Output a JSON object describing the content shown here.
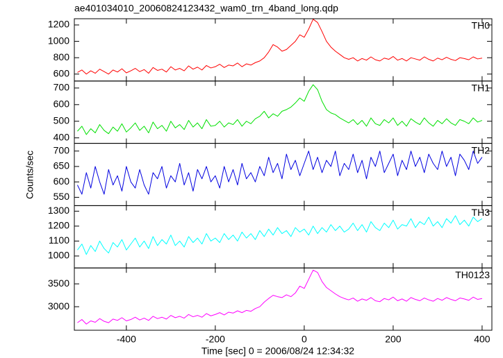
{
  "chart_data": {
    "type": "line",
    "title": "ae401034010_20060824123432_wam0_trn_4band_long.qdp",
    "xlabel": "Time [sec] 0 = 2006/08/24 12:34:32",
    "ylabel": "Counts/sec",
    "xlim": [
      -517,
      422
    ],
    "xticks": [
      -400,
      -200,
      0,
      200,
      400
    ],
    "x": [
      -510,
      -500,
      -490,
      -480,
      -470,
      -460,
      -450,
      -440,
      -430,
      -420,
      -410,
      -400,
      -390,
      -380,
      -370,
      -360,
      -350,
      -340,
      -330,
      -320,
      -310,
      -300,
      -290,
      -280,
      -270,
      -260,
      -250,
      -240,
      -230,
      -220,
      -210,
      -200,
      -190,
      -180,
      -170,
      -160,
      -150,
      -140,
      -130,
      -120,
      -110,
      -100,
      -90,
      -80,
      -70,
      -60,
      -50,
      -40,
      -30,
      -20,
      -10,
      0,
      10,
      20,
      30,
      40,
      50,
      60,
      70,
      80,
      90,
      100,
      110,
      120,
      130,
      140,
      150,
      160,
      170,
      180,
      190,
      200,
      210,
      220,
      230,
      240,
      250,
      260,
      270,
      280,
      290,
      300,
      310,
      320,
      330,
      340,
      350,
      360,
      370,
      380,
      390,
      400
    ],
    "series": [
      {
        "name": "TH0",
        "color": "#ff0000",
        "ylim": [
          515,
          1276
        ],
        "yticks": [
          600,
          800,
          1000,
          1200
        ],
        "values": [
          620,
          650,
          600,
          640,
          610,
          660,
          630,
          600,
          650,
          625,
          665,
          615,
          640,
          670,
          630,
          655,
          610,
          680,
          645,
          660,
          625,
          690,
          650,
          670,
          640,
          700,
          660,
          685,
          650,
          705,
          675,
          690,
          720,
          680,
          710,
          700,
          735,
          690,
          725,
          710,
          740,
          760,
          800,
          870,
          960,
          930,
          880,
          900,
          950,
          1000,
          1080,
          1050,
          1150,
          1270,
          1230,
          1120,
          1000,
          930,
          880,
          840,
          800,
          780,
          800,
          760,
          790,
          770,
          810,
          775,
          760,
          795,
          780,
          815,
          770,
          790,
          760,
          800,
          785,
          770,
          810,
          780,
          760,
          795,
          775,
          805,
          780,
          765,
          800,
          790,
          775,
          810,
          785,
          795
        ]
      },
      {
        "name": "TH1",
        "color": "#00e000",
        "ylim": [
          367,
          742
        ],
        "yticks": [
          400,
          500,
          600,
          700
        ],
        "values": [
          440,
          470,
          420,
          455,
          430,
          480,
          445,
          425,
          465,
          440,
          485,
          435,
          460,
          490,
          445,
          470,
          430,
          495,
          455,
          475,
          440,
          500,
          460,
          480,
          450,
          505,
          465,
          490,
          455,
          510,
          470,
          475,
          500,
          465,
          490,
          480,
          510,
          470,
          500,
          485,
          515,
          530,
          560,
          520,
          545,
          530,
          560,
          570,
          585,
          610,
          640,
          620,
          680,
          720,
          690,
          620,
          570,
          550,
          540,
          520,
          505,
          490,
          510,
          480,
          505,
          470,
          520,
          485,
          475,
          510,
          490,
          520,
          475,
          500,
          470,
          515,
          495,
          480,
          520,
          490,
          470,
          505,
          485,
          515,
          490,
          475,
          510,
          500,
          485,
          520,
          495,
          505
        ]
      },
      {
        "name": "TH2",
        "color": "#0000e0",
        "ylim": [
          523,
          725
        ],
        "yticks": [
          550,
          600,
          650,
          700
        ],
        "values": [
          590,
          560,
          630,
          580,
          650,
          600,
          560,
          640,
          590,
          620,
          570,
          650,
          600,
          580,
          640,
          590,
          560,
          630,
          610,
          650,
          580,
          620,
          600,
          660,
          590,
          630,
          570,
          640,
          610,
          650,
          600,
          620,
          580,
          650,
          600,
          640,
          590,
          660,
          610,
          630,
          600,
          650,
          620,
          680,
          630,
          660,
          610,
          690,
          640,
          670,
          620,
          660,
          700,
          640,
          680,
          630,
          670,
          650,
          700,
          620,
          660,
          640,
          690,
          630,
          670,
          610,
          680,
          650,
          700,
          630,
          660,
          690,
          620,
          670,
          640,
          700,
          650,
          680,
          630,
          690,
          660,
          640,
          700,
          650,
          680,
          620,
          690,
          670,
          640,
          700,
          660,
          680
        ]
      },
      {
        "name": "TH3",
        "color": "#00ffff",
        "ylim": [
          920,
          1337
        ],
        "yticks": [
          1000,
          1100,
          1200,
          1300
        ],
        "values": [
          1040,
          1080,
          1010,
          1070,
          1030,
          1100,
          1050,
          1020,
          1090,
          1060,
          1110,
          1040,
          1080,
          1120,
          1060,
          1100,
          1050,
          1130,
          1070,
          1110,
          1080,
          1140,
          1070,
          1100,
          1060,
          1130,
          1090,
          1120,
          1080,
          1150,
          1100,
          1120,
          1090,
          1150,
          1110,
          1140,
          1100,
          1160,
          1120,
          1150,
          1110,
          1170,
          1130,
          1180,
          1140,
          1190,
          1150,
          1170,
          1130,
          1190,
          1160,
          1180,
          1140,
          1200,
          1150,
          1190,
          1160,
          1210,
          1170,
          1200,
          1160,
          1180,
          1220,
          1170,
          1210,
          1160,
          1230,
          1190,
          1170,
          1220,
          1190,
          1240,
          1180,
          1210,
          1200,
          1250,
          1190,
          1230,
          1210,
          1260,
          1200,
          1230,
          1190,
          1250,
          1220,
          1270,
          1210,
          1240,
          1200,
          1260,
          1230,
          1250
        ]
      },
      {
        "name": "TH0123",
        "color": "#ff00ff",
        "ylim": [
          2485,
          3848
        ],
        "yticks": [
          3000,
          3500
        ],
        "values": [
          2650,
          2720,
          2620,
          2690,
          2660,
          2740,
          2680,
          2650,
          2730,
          2700,
          2760,
          2690,
          2720,
          2770,
          2710,
          2750,
          2700,
          2790,
          2740,
          2770,
          2730,
          2810,
          2760,
          2790,
          2750,
          2830,
          2780,
          2810,
          2770,
          2850,
          2800,
          2830,
          2870,
          2820,
          2880,
          2860,
          2910,
          2870,
          2920,
          2900,
          2960,
          3000,
          3100,
          3180,
          3250,
          3220,
          3200,
          3260,
          3220,
          3300,
          3450,
          3400,
          3600,
          3800,
          3750,
          3550,
          3420,
          3350,
          3280,
          3220,
          3180,
          3150,
          3190,
          3120,
          3170,
          3140,
          3200,
          3130,
          3110,
          3180,
          3150,
          3210,
          3130,
          3170,
          3120,
          3200,
          3160,
          3130,
          3190,
          3150,
          3120,
          3180,
          3140,
          3200,
          3160,
          3130,
          3190,
          3170,
          3140,
          3210,
          3160,
          3180
        ]
      }
    ]
  }
}
